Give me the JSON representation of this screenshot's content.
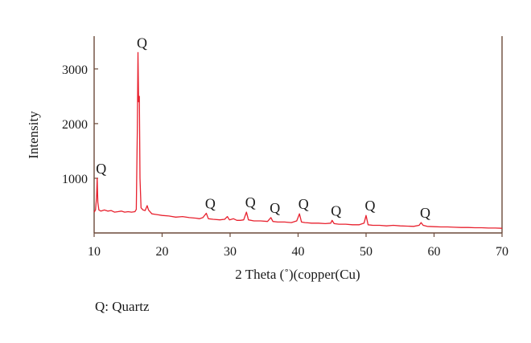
{
  "chart_data": {
    "type": "line",
    "title": "",
    "xlabel": "2 Theta (˚)(copper(Cu)",
    "ylabel": "Intensity",
    "xlim": [
      10,
      70
    ],
    "ylim": [
      0,
      3600
    ],
    "x_ticks": [
      "10",
      "20",
      "30",
      "40",
      "50",
      "60",
      "70"
    ],
    "y_ticks": [
      "1000",
      "2000",
      "3000"
    ],
    "grid": false,
    "series": [
      {
        "color": "#e8212e",
        "points": [
          [
            10.0,
            380
          ],
          [
            10.2,
            420
          ],
          [
            10.35,
            650
          ],
          [
            10.45,
            1000
          ],
          [
            10.55,
            560
          ],
          [
            10.7,
            420
          ],
          [
            11.0,
            400
          ],
          [
            11.5,
            420
          ],
          [
            12.0,
            400
          ],
          [
            12.5,
            410
          ],
          [
            13.0,
            380
          ],
          [
            13.5,
            390
          ],
          [
            14.0,
            400
          ],
          [
            14.5,
            380
          ],
          [
            15.0,
            390
          ],
          [
            15.5,
            380
          ],
          [
            16.0,
            390
          ],
          [
            16.2,
            430
          ],
          [
            16.35,
            1900
          ],
          [
            16.45,
            3300
          ],
          [
            16.55,
            2400
          ],
          [
            16.65,
            2500
          ],
          [
            16.75,
            1000
          ],
          [
            16.9,
            460
          ],
          [
            17.2,
            420
          ],
          [
            17.5,
            410
          ],
          [
            17.8,
            500
          ],
          [
            18.0,
            420
          ],
          [
            18.5,
            350
          ],
          [
            19.0,
            340
          ],
          [
            19.5,
            330
          ],
          [
            20.0,
            320
          ],
          [
            21.0,
            310
          ],
          [
            22.0,
            290
          ],
          [
            23.0,
            300
          ],
          [
            24.0,
            280
          ],
          [
            25.0,
            270
          ],
          [
            25.5,
            260
          ],
          [
            26.0,
            280
          ],
          [
            26.5,
            360
          ],
          [
            26.8,
            260
          ],
          [
            27.5,
            250
          ],
          [
            28.5,
            240
          ],
          [
            29.2,
            250
          ],
          [
            29.6,
            300
          ],
          [
            29.9,
            240
          ],
          [
            30.5,
            260
          ],
          [
            31.0,
            230
          ],
          [
            31.5,
            230
          ],
          [
            32.0,
            240
          ],
          [
            32.4,
            380
          ],
          [
            32.7,
            240
          ],
          [
            33.5,
            220
          ],
          [
            34.5,
            220
          ],
          [
            35.5,
            210
          ],
          [
            36.0,
            280
          ],
          [
            36.3,
            210
          ],
          [
            37.0,
            200
          ],
          [
            38.0,
            200
          ],
          [
            39.0,
            190
          ],
          [
            39.8,
            220
          ],
          [
            40.2,
            350
          ],
          [
            40.5,
            200
          ],
          [
            41.0,
            190
          ],
          [
            42.0,
            180
          ],
          [
            43.0,
            180
          ],
          [
            44.0,
            170
          ],
          [
            44.8,
            180
          ],
          [
            45.0,
            230
          ],
          [
            45.3,
            170
          ],
          [
            46.0,
            160
          ],
          [
            47.0,
            160
          ],
          [
            48.0,
            150
          ],
          [
            49.0,
            150
          ],
          [
            49.7,
            180
          ],
          [
            50.0,
            320
          ],
          [
            50.3,
            150
          ],
          [
            51.0,
            140
          ],
          [
            52.0,
            140
          ],
          [
            53.0,
            130
          ],
          [
            54.0,
            140
          ],
          [
            55.0,
            130
          ],
          [
            56.0,
            125
          ],
          [
            57.0,
            120
          ],
          [
            57.8,
            140
          ],
          [
            58.1,
            190
          ],
          [
            58.4,
            140
          ],
          [
            59.0,
            120
          ],
          [
            60.0,
            115
          ],
          [
            61.0,
            110
          ],
          [
            62.0,
            110
          ],
          [
            63.0,
            105
          ],
          [
            64.0,
            100
          ],
          [
            65.0,
            100
          ],
          [
            66.0,
            95
          ],
          [
            67.0,
            95
          ],
          [
            68.0,
            90
          ],
          [
            69.0,
            90
          ],
          [
            70.0,
            85
          ]
        ]
      }
    ],
    "annotations": [
      {
        "text": "Q",
        "x": 10.45,
        "y": 1000
      },
      {
        "text": "Q",
        "x": 16.45,
        "y": 3300
      },
      {
        "text": "Q",
        "x": 26.5,
        "y": 360
      },
      {
        "text": "Q",
        "x": 32.4,
        "y": 380
      },
      {
        "text": "Q",
        "x": 36.0,
        "y": 280
      },
      {
        "text": "Q",
        "x": 40.2,
        "y": 350
      },
      {
        "text": "Q",
        "x": 45.0,
        "y": 230
      },
      {
        "text": "Q",
        "x": 50.0,
        "y": 320
      },
      {
        "text": "Q",
        "x": 58.1,
        "y": 190
      }
    ]
  },
  "legend_note": "Q: Quartz"
}
